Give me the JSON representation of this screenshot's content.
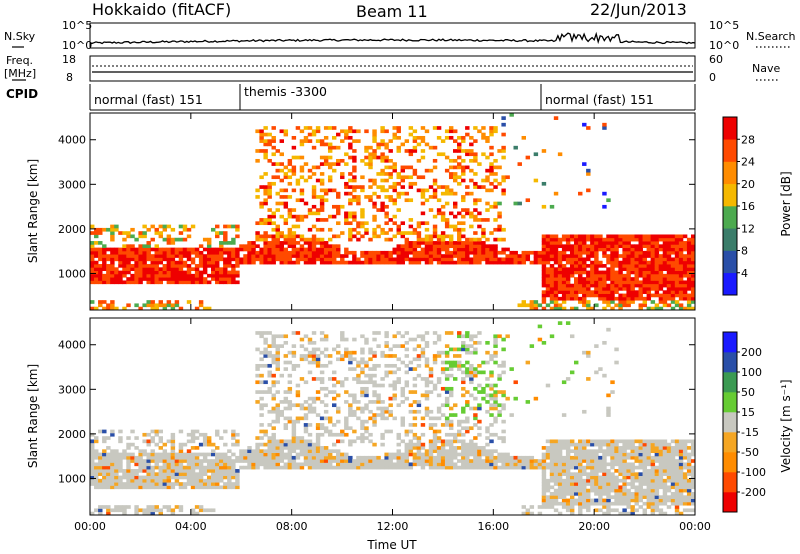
{
  "header": {
    "station": "Hokkaido (fitACF)",
    "beam": "Beam 11",
    "date": "22/Jun/2013"
  },
  "panels": {
    "noise": {
      "left_label": "N.Sky",
      "right_label": "N.Search",
      "left_ticks": [
        "10^5",
        "10^0"
      ],
      "right_ticks": [
        "10^5",
        "10^0"
      ]
    },
    "freq": {
      "left_label_line1": "Freq.",
      "left_label_line2": "[MHz]",
      "right_label": "Nave",
      "left_ticks": [
        "18",
        "8"
      ],
      "right_ticks": [
        "60",
        "0"
      ]
    },
    "cpid": {
      "label": "CPID",
      "modes": [
        "normal (fast) 151",
        "themis -3300",
        "normal (fast) 151"
      ]
    }
  },
  "colors": {
    "power_scale": [
      "#1a1aff",
      "#2a4fa8",
      "#3b7d6a",
      "#4caa4f",
      "#f5b800",
      "#ff8c00",
      "#ff4a00",
      "#ee0000"
    ],
    "velocity_scale": [
      "#ee0000",
      "#ff4a00",
      "#ff8c00",
      "#f5a623",
      "#c8c8c0",
      "#66cc33",
      "#3b9a52",
      "#2a4fa8",
      "#1a1aff"
    ]
  },
  "chart_data": [
    {
      "type": "heatmap",
      "title": "",
      "xlabel": "",
      "ylabel": "Slant Range [km]",
      "colorbar_label": "Power [dB]",
      "colorbar_ticks": [
        "4",
        "8",
        "12",
        "16",
        "20",
        "24",
        "28"
      ],
      "xlim": [
        "00:00",
        "24:00"
      ],
      "ylim": [
        180,
        4600
      ],
      "y_ticks": [
        "1000",
        "2000",
        "3000",
        "4000"
      ],
      "x_ticks": [
        "00:00",
        "04:00",
        "08:00",
        "12:00",
        "16:00",
        "20:00",
        "00:00"
      ],
      "dominant_bands_km": [
        {
          "from_hour": 0,
          "to_hour": 6,
          "range": [
            750,
            1600
          ],
          "level_dB": 26
        },
        {
          "from_hour": 6,
          "to_hour": 18,
          "range": [
            1200,
            1700
          ],
          "level_dB": 28
        },
        {
          "from_hour": 18,
          "to_hour": 24,
          "range": [
            400,
            1900
          ],
          "level_dB": 26
        }
      ]
    },
    {
      "type": "heatmap",
      "title": "",
      "xlabel": "Time UT",
      "ylabel": "Slant Range [km]",
      "colorbar_label": "Velocity [m s⁻¹]",
      "colorbar_ticks": [
        "200",
        "100",
        "50",
        "15",
        "-15",
        "-50",
        "-100",
        "-200"
      ],
      "xlim": [
        "00:00",
        "24:00"
      ],
      "ylim": [
        180,
        4600
      ],
      "y_ticks": [
        "1000",
        "2000",
        "3000",
        "4000"
      ],
      "x_ticks": [
        "00:00",
        "04:00",
        "08:00",
        "12:00",
        "16:00",
        "20:00",
        "00:00"
      ]
    }
  ]
}
